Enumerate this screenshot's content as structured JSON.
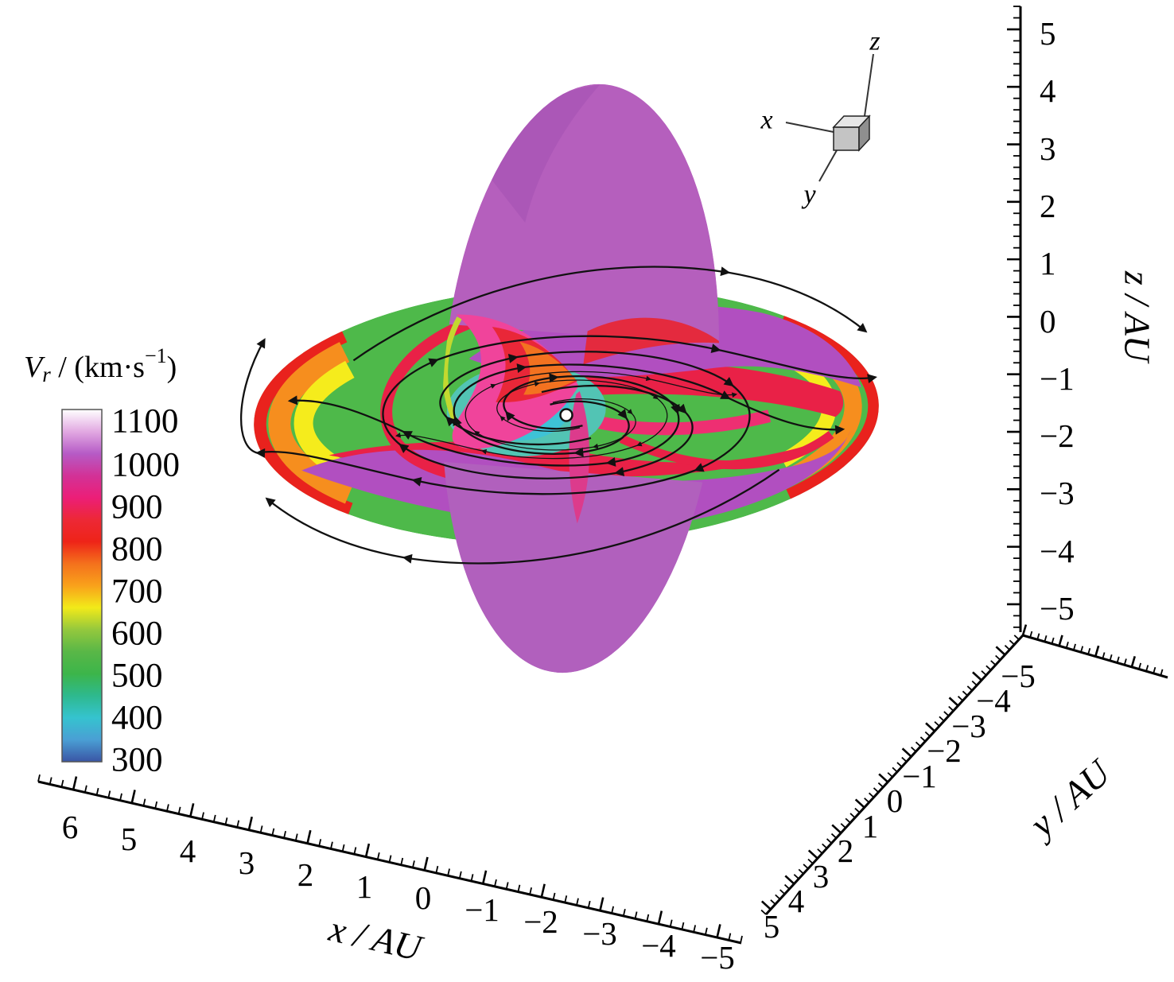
{
  "chart_data": {
    "type": "heatmap",
    "title": "",
    "description": "3D visualization of solar wind radial speed on two orthogonal slices (equatorial and meridional planes) with black arrowed streamlines spiraling outward from the Sun at the origin",
    "colorbar": {
      "label_full": "Vr / (km·s⁻¹)",
      "label_var": "V",
      "label_var_sub": "r",
      "label_mid": " / (km·s",
      "label_sup": "−1",
      "label_close": ")",
      "ticks": [
        "1100",
        "1000",
        "900",
        "800",
        "700",
        "600",
        "500",
        "400",
        "300"
      ],
      "gradient": [
        {
          "value": 1100,
          "color": "#ffffff"
        },
        {
          "value": 1050,
          "color": "#e2a9e2"
        },
        {
          "value": 1000,
          "color": "#b65bc6"
        },
        {
          "value": 950,
          "color": "#d23297"
        },
        {
          "value": 900,
          "color": "#ec1e78"
        },
        {
          "value": 850,
          "color": "#ed2836"
        },
        {
          "value": 800,
          "color": "#ee2418"
        },
        {
          "value": 750,
          "color": "#f4711c"
        },
        {
          "value": 700,
          "color": "#f9a11b"
        },
        {
          "value": 650,
          "color": "#f2ea19"
        },
        {
          "value": 600,
          "color": "#94c83d"
        },
        {
          "value": 550,
          "color": "#59b747"
        },
        {
          "value": 500,
          "color": "#3cb54a"
        },
        {
          "value": 450,
          "color": "#2eb98e"
        },
        {
          "value": 400,
          "color": "#35c3cf"
        },
        {
          "value": 350,
          "color": "#4a9fd4"
        },
        {
          "value": 300,
          "color": "#3a55a5"
        }
      ]
    },
    "axes": {
      "x": {
        "label": "x / AU",
        "range": [
          6,
          -5
        ],
        "ticks": [
          "6",
          "5",
          "4",
          "3",
          "2",
          "1",
          "0",
          "−1",
          "−2",
          "−3",
          "−4",
          "−5"
        ]
      },
      "y": {
        "label": "y / AU",
        "range": [
          5,
          -5
        ],
        "ticks": [
          "5",
          "4",
          "3",
          "2",
          "1",
          "0",
          "−1",
          "−2",
          "−3",
          "−4",
          "−5"
        ]
      },
      "z": {
        "label": "z / AU",
        "range": [
          5,
          -5
        ],
        "ticks": [
          "5",
          "4",
          "3",
          "2",
          "1",
          "0",
          "−1",
          "−2",
          "−3",
          "−4",
          "−5"
        ]
      }
    },
    "orientation_cube": {
      "x": "x",
      "y": "y",
      "z": "z"
    },
    "slices": [
      {
        "name": "equatorial-plane",
        "appearance": "two-arm spiral of fast wind (magenta/red) over slow wind (green), cyan-blue core at the Sun, yellow-orange-red fringe at the outer rim"
      },
      {
        "name": "meridional-plane",
        "appearance": "mostly purple-magenta (~1000 km/s) with bright pink-red interface region near the Sun"
      }
    ],
    "streamlines": {
      "color": "#111111",
      "count": 10,
      "direction": "clockwise outward spirals with arrowheads"
    },
    "sun": {
      "appearance": "small white dot at origin"
    }
  }
}
